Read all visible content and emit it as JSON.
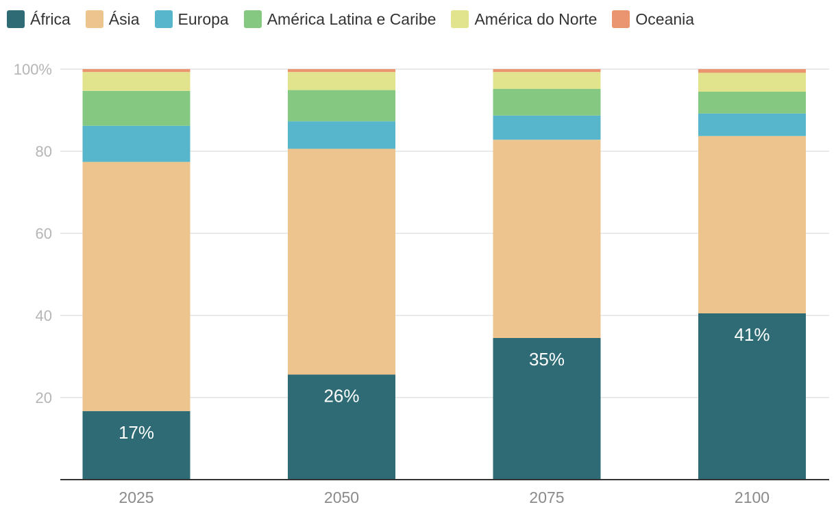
{
  "chart_data": {
    "type": "bar",
    "stacked": true,
    "categories": [
      "2025",
      "2050",
      "2075",
      "2100"
    ],
    "series": [
      {
        "name": "África",
        "color": "#2e6b75",
        "values": [
          16.7,
          25.6,
          34.5,
          40.5
        ]
      },
      {
        "name": "Ásia",
        "color": "#edc38e",
        "values": [
          60.7,
          55.0,
          48.3,
          43.2
        ]
      },
      {
        "name": "Europa",
        "color": "#57b6cb",
        "values": [
          8.8,
          6.7,
          5.9,
          5.5
        ]
      },
      {
        "name": "América Latina e Caribe",
        "color": "#85c881",
        "values": [
          8.5,
          7.6,
          6.5,
          5.3
        ]
      },
      {
        "name": "América do Norte",
        "color": "#e1e48c",
        "values": [
          4.6,
          4.4,
          4.1,
          4.6
        ]
      },
      {
        "name": "Oceania",
        "color": "#eb9570",
        "values": [
          0.7,
          0.7,
          0.7,
          0.9
        ]
      }
    ],
    "data_labels": [
      "17%",
      "26%",
      "35%",
      "41%"
    ],
    "y_ticks": [
      "20",
      "40",
      "60",
      "80",
      "100%"
    ],
    "ylim": [
      0,
      100
    ],
    "grid": true,
    "legend_position": "top-left",
    "title": "",
    "xlabel": "",
    "ylabel": ""
  }
}
